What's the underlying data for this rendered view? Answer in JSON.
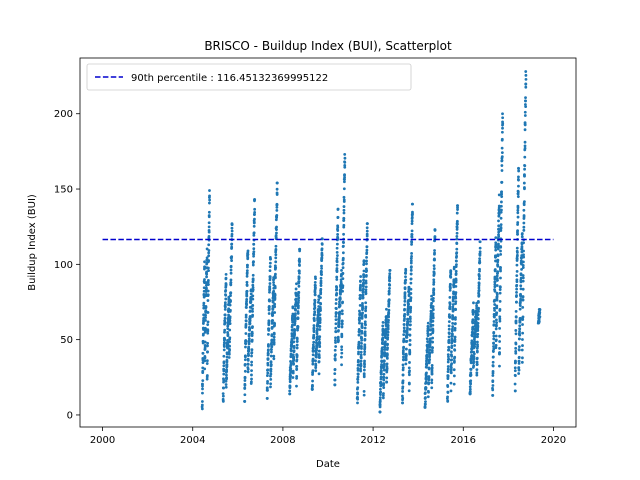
{
  "chart_data": {
    "type": "scatter",
    "title": "BRISCO - Buildup Index (BUI), Scatterplot",
    "xlabel": "Date",
    "ylabel": "Buildup Index (BUI)",
    "xlim": [
      1999.0,
      2021.0
    ],
    "ylim": [
      -8,
      237
    ],
    "x_ticks": [
      2000,
      2004,
      2008,
      2012,
      2016,
      2020
    ],
    "x_tick_labels": [
      "2000",
      "2004",
      "2008",
      "2012",
      "2016",
      "2020"
    ],
    "y_ticks": [
      0,
      50,
      100,
      150,
      200
    ],
    "y_tick_labels": [
      "0",
      "50",
      "100",
      "150",
      "200"
    ],
    "grid": false,
    "legend_position": "top-left",
    "point_color": "#1f77b4",
    "reference_line": {
      "label": "90th percentile : 116.45132369995122",
      "value": 116.45132369995122,
      "x_range": [
        2000.0,
        2020.0
      ],
      "color": "#0000cd",
      "style": "dashed"
    },
    "season_clusters": [
      {
        "start": 2004.42,
        "end": 2004.75,
        "peak": 149,
        "low": 4
      },
      {
        "start": 2005.35,
        "end": 2005.75,
        "peak": 127,
        "low": 9
      },
      {
        "start": 2006.3,
        "end": 2006.75,
        "peak": 143,
        "low": 9
      },
      {
        "start": 2007.3,
        "end": 2007.75,
        "peak": 154,
        "low": 11
      },
      {
        "start": 2008.3,
        "end": 2008.75,
        "peak": 110,
        "low": 14
      },
      {
        "start": 2009.3,
        "end": 2009.75,
        "peak": 117,
        "low": 17
      },
      {
        "start": 2010.3,
        "end": 2010.75,
        "peak": 173,
        "low": 20
      },
      {
        "start": 2011.3,
        "end": 2011.75,
        "peak": 127,
        "low": 8
      },
      {
        "start": 2012.3,
        "end": 2012.75,
        "peak": 96,
        "low": 2
      },
      {
        "start": 2013.3,
        "end": 2013.75,
        "peak": 140,
        "low": 8
      },
      {
        "start": 2014.3,
        "end": 2014.75,
        "peak": 123,
        "low": 5
      },
      {
        "start": 2015.3,
        "end": 2015.75,
        "peak": 139,
        "low": 9
      },
      {
        "start": 2016.3,
        "end": 2016.75,
        "peak": 115,
        "low": 14
      },
      {
        "start": 2017.3,
        "end": 2017.75,
        "peak": 200,
        "low": 13
      },
      {
        "start": 2018.3,
        "end": 2018.78,
        "peak": 228,
        "low": 16
      },
      {
        "start": 2019.33,
        "end": 2019.4,
        "peak": 70,
        "low": 61
      }
    ]
  }
}
